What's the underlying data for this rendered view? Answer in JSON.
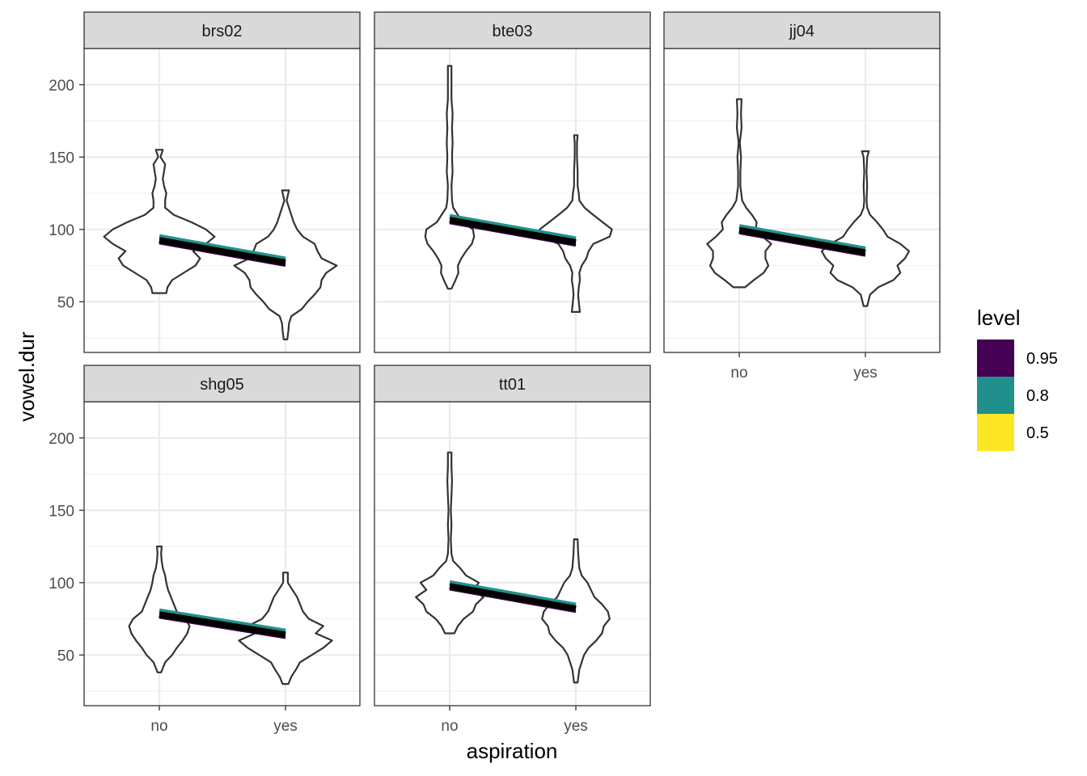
{
  "chart_data": {
    "type": "violin",
    "xlabel": "aspiration",
    "ylabel": "vowel.dur",
    "categories": [
      "no",
      "yes"
    ],
    "y_ticks": [
      50,
      100,
      150,
      200
    ],
    "ylim": [
      15,
      225
    ],
    "grid": true,
    "legend": {
      "title": "level",
      "position": "right",
      "entries": [
        {
          "label": "0.95",
          "color": "#440154"
        },
        {
          "label": "0.8",
          "color": "#21908C"
        },
        {
          "label": "0.5",
          "color": "#FDE725"
        }
      ]
    },
    "panels": [
      {
        "label": "brs02",
        "fit": {
          "no": 92.5,
          "yes": 77
        },
        "violins": {
          "no": [
            [
              56,
              0.12
            ],
            [
              60,
              0.14
            ],
            [
              65,
              0.22
            ],
            [
              70,
              0.42
            ],
            [
              75,
              0.62
            ],
            [
              80,
              0.7
            ],
            [
              85,
              0.58
            ],
            [
              90,
              0.8
            ],
            [
              95,
              0.95
            ],
            [
              100,
              0.8
            ],
            [
              105,
              0.55
            ],
            [
              110,
              0.25
            ],
            [
              115,
              0.1
            ],
            [
              120,
              0.1
            ],
            [
              125,
              0.12
            ],
            [
              130,
              0.08
            ],
            [
              135,
              0.06
            ],
            [
              140,
              0.08
            ],
            [
              145,
              0.1
            ],
            [
              150,
              0.02
            ],
            [
              155,
              0.06
            ]
          ],
          "yes": [
            [
              24,
              0.03
            ],
            [
              30,
              0.05
            ],
            [
              35,
              0.06
            ],
            [
              40,
              0.1
            ],
            [
              45,
              0.28
            ],
            [
              50,
              0.38
            ],
            [
              55,
              0.5
            ],
            [
              60,
              0.6
            ],
            [
              65,
              0.62
            ],
            [
              70,
              0.7
            ],
            [
              75,
              0.88
            ],
            [
              80,
              0.62
            ],
            [
              85,
              0.55
            ],
            [
              90,
              0.5
            ],
            [
              95,
              0.3
            ],
            [
              100,
              0.2
            ],
            [
              105,
              0.14
            ],
            [
              110,
              0.1
            ],
            [
              115,
              0.06
            ],
            [
              120,
              0.02
            ],
            [
              127,
              0.06
            ]
          ]
        }
      },
      {
        "label": "bte03",
        "fit": {
          "no": 106.5,
          "yes": 91
        },
        "violins": {
          "no": [
            [
              59,
              0.03
            ],
            [
              65,
              0.1
            ],
            [
              70,
              0.15
            ],
            [
              75,
              0.14
            ],
            [
              80,
              0.2
            ],
            [
              85,
              0.28
            ],
            [
              90,
              0.38
            ],
            [
              95,
              0.42
            ],
            [
              100,
              0.4
            ],
            [
              105,
              0.22
            ],
            [
              110,
              0.14
            ],
            [
              115,
              0.06
            ],
            [
              120,
              0.04
            ],
            [
              130,
              0.03
            ],
            [
              140,
              0.05
            ],
            [
              150,
              0.04
            ],
            [
              160,
              0.05
            ],
            [
              170,
              0.04
            ],
            [
              180,
              0.05
            ],
            [
              190,
              0.03
            ],
            [
              200,
              0.03
            ],
            [
              213,
              0.03
            ]
          ],
          "yes": [
            [
              43,
              0.07
            ],
            [
              50,
              0.05
            ],
            [
              55,
              0.04
            ],
            [
              60,
              0.05
            ],
            [
              65,
              0.07
            ],
            [
              70,
              0.06
            ],
            [
              75,
              0.1
            ],
            [
              80,
              0.18
            ],
            [
              85,
              0.22
            ],
            [
              90,
              0.3
            ],
            [
              95,
              0.58
            ],
            [
              100,
              0.62
            ],
            [
              105,
              0.46
            ],
            [
              110,
              0.3
            ],
            [
              115,
              0.15
            ],
            [
              120,
              0.06
            ],
            [
              125,
              0.05
            ],
            [
              130,
              0.03
            ],
            [
              140,
              0.03
            ],
            [
              150,
              0.02
            ],
            [
              160,
              0.02
            ],
            [
              165,
              0.03
            ]
          ]
        }
      },
      {
        "label": "jj04",
        "fit": {
          "no": 99.5,
          "yes": 84
        },
        "violins": {
          "no": [
            [
              60,
              0.1
            ],
            [
              65,
              0.25
            ],
            [
              70,
              0.42
            ],
            [
              75,
              0.5
            ],
            [
              80,
              0.45
            ],
            [
              85,
              0.45
            ],
            [
              90,
              0.55
            ],
            [
              95,
              0.4
            ],
            [
              100,
              0.28
            ],
            [
              105,
              0.3
            ],
            [
              110,
              0.22
            ],
            [
              115,
              0.12
            ],
            [
              120,
              0.05
            ],
            [
              130,
              0.02
            ],
            [
              140,
              0.02
            ],
            [
              150,
              0.03
            ],
            [
              160,
              0.01
            ],
            [
              170,
              0.04
            ],
            [
              180,
              0.03
            ],
            [
              190,
              0.04
            ]
          ],
          "yes": [
            [
              47,
              0.03
            ],
            [
              55,
              0.08
            ],
            [
              60,
              0.22
            ],
            [
              65,
              0.48
            ],
            [
              70,
              0.6
            ],
            [
              75,
              0.55
            ],
            [
              80,
              0.68
            ],
            [
              85,
              0.75
            ],
            [
              90,
              0.6
            ],
            [
              95,
              0.38
            ],
            [
              100,
              0.3
            ],
            [
              105,
              0.2
            ],
            [
              110,
              0.08
            ],
            [
              115,
              0.03
            ],
            [
              120,
              0.02
            ],
            [
              130,
              0.03
            ],
            [
              140,
              0.02
            ],
            [
              150,
              0.03
            ],
            [
              154,
              0.06
            ]
          ]
        }
      },
      {
        "label": "shg05",
        "fit": {
          "no": 78,
          "yes": 64
        },
        "violins": {
          "no": [
            [
              38,
              0.03
            ],
            [
              45,
              0.1
            ],
            [
              50,
              0.22
            ],
            [
              55,
              0.3
            ],
            [
              60,
              0.4
            ],
            [
              65,
              0.48
            ],
            [
              70,
              0.52
            ],
            [
              75,
              0.45
            ],
            [
              80,
              0.3
            ],
            [
              85,
              0.25
            ],
            [
              90,
              0.2
            ],
            [
              95,
              0.15
            ],
            [
              100,
              0.12
            ],
            [
              105,
              0.1
            ],
            [
              110,
              0.06
            ],
            [
              115,
              0.04
            ],
            [
              120,
              0.03
            ],
            [
              125,
              0.04
            ]
          ],
          "yes": [
            [
              30,
              0.05
            ],
            [
              35,
              0.1
            ],
            [
              40,
              0.18
            ],
            [
              45,
              0.25
            ],
            [
              50,
              0.45
            ],
            [
              55,
              0.65
            ],
            [
              60,
              0.8
            ],
            [
              65,
              0.52
            ],
            [
              70,
              0.65
            ],
            [
              75,
              0.4
            ],
            [
              80,
              0.3
            ],
            [
              85,
              0.25
            ],
            [
              90,
              0.2
            ],
            [
              95,
              0.12
            ],
            [
              100,
              0.04
            ],
            [
              107,
              0.04
            ]
          ]
        }
      },
      {
        "label": "tt01",
        "fit": {
          "no": 97.5,
          "yes": 82
        },
        "violins": {
          "no": [
            [
              65,
              0.08
            ],
            [
              70,
              0.14
            ],
            [
              75,
              0.24
            ],
            [
              80,
              0.4
            ],
            [
              85,
              0.45
            ],
            [
              90,
              0.58
            ],
            [
              95,
              0.4
            ],
            [
              100,
              0.5
            ],
            [
              105,
              0.28
            ],
            [
              110,
              0.18
            ],
            [
              115,
              0.06
            ],
            [
              120,
              0.03
            ],
            [
              130,
              0.02
            ],
            [
              140,
              0.03
            ],
            [
              150,
              0.02
            ],
            [
              160,
              0.03
            ],
            [
              170,
              0.04
            ],
            [
              180,
              0.03
            ],
            [
              190,
              0.03
            ]
          ],
          "yes": [
            [
              31,
              0.03
            ],
            [
              40,
              0.06
            ],
            [
              50,
              0.14
            ],
            [
              55,
              0.22
            ],
            [
              60,
              0.35
            ],
            [
              65,
              0.45
            ],
            [
              70,
              0.48
            ],
            [
              75,
              0.58
            ],
            [
              80,
              0.55
            ],
            [
              85,
              0.45
            ],
            [
              90,
              0.32
            ],
            [
              95,
              0.26
            ],
            [
              100,
              0.2
            ],
            [
              105,
              0.1
            ],
            [
              110,
              0.06
            ],
            [
              120,
              0.04
            ],
            [
              130,
              0.03
            ]
          ]
        }
      }
    ]
  }
}
